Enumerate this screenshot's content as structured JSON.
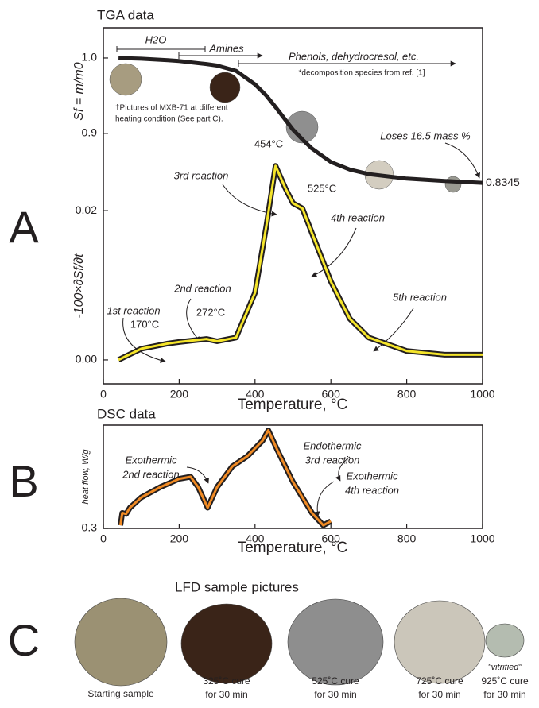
{
  "chart_data": [
    {
      "type": "line",
      "label": "A",
      "title": "TGA data",
      "xlabel": "Temperature, °C",
      "ylabel": "-100×∂Sf/∂t",
      "y2label": "Sf = m/m0",
      "x": [
        40,
        100,
        170,
        200,
        272,
        300,
        350,
        400,
        430,
        454,
        480,
        500,
        525,
        550,
        600,
        650,
        700,
        800,
        900,
        1000
      ],
      "xlim": [
        0,
        1000
      ],
      "xticks": [
        0,
        200,
        400,
        600,
        800,
        1000
      ],
      "ylim": [
        -0.0032,
        0.0445
      ],
      "yticks": [
        {
          "value": 0,
          "label": "0.00"
        },
        0.02
      ],
      "y2lim": [
        0.568,
        1.04
      ],
      "y2ticks": [
        0.9,
        {
          "value": 1,
          "label": "1.0"
        }
      ],
      "series": [
        {
          "color": "#231f20",
          "axis": "y2",
          "values": [
            1.0,
            0.999,
            0.997,
            0.996,
            0.992,
            0.99,
            0.983,
            0.965,
            0.95,
            0.935,
            0.918,
            0.905,
            0.892,
            0.88,
            0.862,
            0.852,
            0.846,
            0.84,
            0.837,
            0.8345
          ]
        },
        {
          "color": "#f5e52a",
          "values": [
            0.0,
            0.0015,
            0.0022,
            0.0024,
            0.0028,
            0.0025,
            0.003,
            0.009,
            0.018,
            0.026,
            0.023,
            0.021,
            0.0203,
            0.017,
            0.0105,
            0.0055,
            0.003,
            0.0012,
            0.0007,
            0.0007
          ]
        }
      ],
      "annotations": [
        "H2O",
        "Amines",
        "Phenols, dehydrocresol, etc.",
        "*decomposition species from ref. [1]",
        "†Pictures of MXB-71 at different",
        "heating condition (See part C).",
        "454°C",
        "525°C",
        "3rd reaction",
        "4th reaction",
        "2nd reaction",
        "1st reaction",
        "170°C",
        "272°C",
        "5th reaction",
        "Loses 16.5 mass %"
      ]
    },
    {
      "type": "line",
      "label": "B",
      "title": "DSC data",
      "xlabel": "Temperature, °C",
      "ylabel": "heat flow, W/g",
      "x": [
        45,
        50,
        60,
        70,
        100,
        150,
        200,
        230,
        250,
        275,
        300,
        340,
        380,
        420,
        435,
        460,
        500,
        550,
        580,
        600
      ],
      "xlim": [
        0,
        1000
      ],
      "xticks": [
        0,
        200,
        400,
        600,
        800,
        1000
      ],
      "ylim": [
        0.3,
        1.3
      ],
      "yticks": [
        0.3
      ],
      "series": [
        {
          "color": "#f08a24",
          "values": [
            0.33,
            0.45,
            0.44,
            0.5,
            0.6,
            0.7,
            0.78,
            0.8,
            0.7,
            0.5,
            0.7,
            0.9,
            1.0,
            1.15,
            1.25,
            1.05,
            0.75,
            0.45,
            0.33,
            0.37
          ]
        }
      ],
      "annotations": [
        "Exothermic",
        "2nd reaction",
        "Endothermic",
        "3rd reaction",
        "Exothermic",
        "4th reaction"
      ]
    }
  ],
  "sample_pictures": {
    "label": "C",
    "title": "LFD sample pictures",
    "note": "\"vitrified\"",
    "captions": [
      [
        "Starting sample"
      ],
      [
        "325˚C cure",
        "for 30 min"
      ],
      [
        "525˚C cure",
        "for 30 min"
      ],
      [
        "725˚C cure",
        "for 30 min"
      ],
      [
        "925˚C cure",
        "for 30 min"
      ]
    ]
  }
}
